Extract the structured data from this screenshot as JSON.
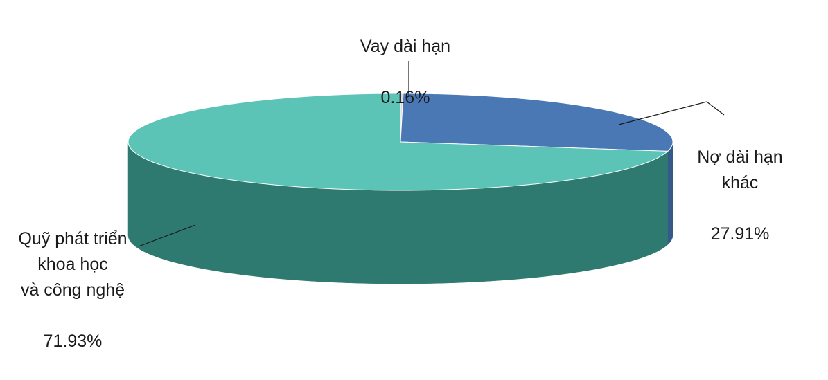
{
  "chart_data": {
    "type": "pie3d",
    "categories": [
      "Vay dài hạn",
      "Nợ dài hạn khác",
      "Quỹ phát triển\nkhoa học\nvà công nghệ"
    ],
    "values": [
      0.16,
      27.91,
      71.93
    ],
    "value_labels": [
      "0.16%",
      "27.91%",
      "71.93%"
    ],
    "colors": [
      "#d9d9d9",
      "#4a78b5",
      "#5bc4b6"
    ],
    "side_colors": [
      "#a6a6a6",
      "#35598a",
      "#2f7a70"
    ]
  }
}
